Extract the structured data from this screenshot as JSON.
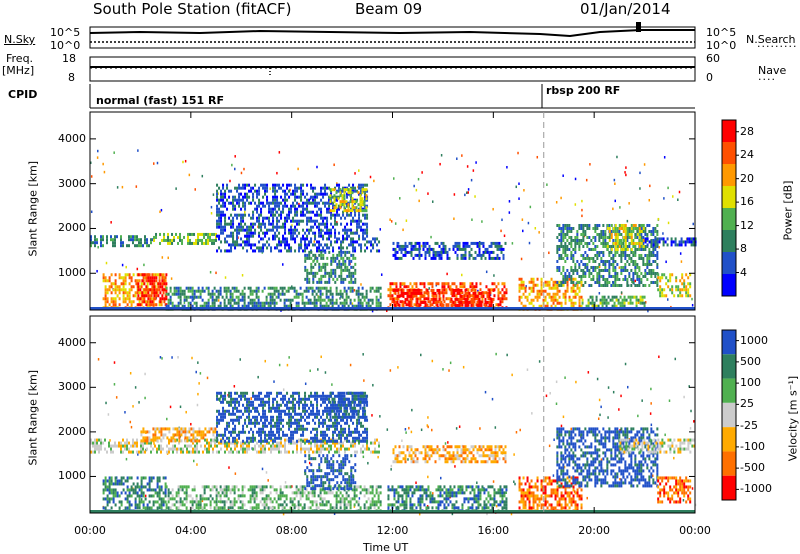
{
  "header": {
    "station": "South Pole Station (fitACF)",
    "beam": "Beam 09",
    "date": "01/Jan/2014"
  },
  "top_panels": {
    "nsky_label": "N.Sky",
    "nsearch_label": "N.Search",
    "nsky_ticks": [
      "10^5",
      "10^0"
    ],
    "freq_label": "Freq.",
    "freq_unit": "[MHz]",
    "freq_ticks": [
      "18",
      "8"
    ],
    "nave_label": "Nave",
    "nave_ticks": [
      "60",
      "0"
    ],
    "cpid_label": "CPID",
    "cpid_segments": [
      {
        "name": "normal (fast) 151 RF",
        "start_hour": 0
      },
      {
        "name": "rbsp 200 RF",
        "start_hour": 18
      }
    ]
  },
  "colors": {
    "power_scale": [
      "#0000ff",
      "#2050c8",
      "#2e7f5e",
      "#50b050",
      "#e0e000",
      "#ff9900",
      "#ff5000",
      "#ff0000"
    ],
    "velocity_scale": [
      "#2050c8",
      "#2e7f5e",
      "#50b050",
      "#cccccc",
      "#ffaa00",
      "#ff7000",
      "#ff0000"
    ]
  },
  "chart_data": [
    {
      "type": "heatmap",
      "panel": "power",
      "xlabel": "Time UT",
      "ylabel": "Slant Range [km]",
      "x_ticks": [
        "00:00",
        "04:00",
        "08:00",
        "12:00",
        "16:00",
        "20:00",
        "00:00"
      ],
      "xlim_hours": [
        0,
        24
      ],
      "y_ticks": [
        "1000",
        "2000",
        "3000",
        "4000"
      ],
      "ylim": [
        180,
        4600
      ],
      "colorbar_label": "Power [dB]",
      "colorbar_ticks": [
        "4",
        "8",
        "12",
        "16",
        "20",
        "24",
        "28"
      ],
      "colorbar_range": [
        0,
        30
      ],
      "regions": [
        {
          "t0": 0.0,
          "t1": 2.5,
          "r0": 1600,
          "r1": 1850,
          "level": 2
        },
        {
          "t0": 2.5,
          "t1": 5.0,
          "r0": 1650,
          "r1": 1900,
          "level": 3
        },
        {
          "t0": 5.0,
          "t1": 11.5,
          "r0": 1500,
          "r1": 1800,
          "level": 1
        },
        {
          "t0": 0.5,
          "t1": 3.0,
          "r0": 250,
          "r1": 1000,
          "level": 5
        },
        {
          "t0": 1.8,
          "t1": 3.0,
          "r0": 300,
          "r1": 1000,
          "level": 7
        },
        {
          "t0": 3.0,
          "t1": 11.5,
          "r0": 200,
          "r1": 700,
          "level": 2
        },
        {
          "t0": 5.0,
          "t1": 11.0,
          "r0": 1800,
          "r1": 3000,
          "level": 1
        },
        {
          "t0": 9.5,
          "t1": 11.0,
          "r0": 2400,
          "r1": 2900,
          "level": 4
        },
        {
          "t0": 8.5,
          "t1": 10.5,
          "r0": 800,
          "r1": 1500,
          "level": 2
        },
        {
          "t0": 11.8,
          "t1": 16.5,
          "r0": 200,
          "r1": 800,
          "level": 6
        },
        {
          "t0": 12.0,
          "t1": 14.0,
          "r0": 200,
          "r1": 650,
          "level": 7
        },
        {
          "t0": 14.3,
          "t1": 16.0,
          "r0": 200,
          "r1": 650,
          "level": 7
        },
        {
          "t0": 12.0,
          "t1": 16.5,
          "r0": 1300,
          "r1": 1700,
          "level": 1
        },
        {
          "t0": 17.0,
          "t1": 19.5,
          "r0": 200,
          "r1": 900,
          "level": 5
        },
        {
          "t0": 18.5,
          "t1": 22.5,
          "r0": 700,
          "r1": 2100,
          "level": 2
        },
        {
          "t0": 20.5,
          "t1": 22.0,
          "r0": 1500,
          "r1": 2100,
          "level": 4
        },
        {
          "t0": 22.0,
          "t1": 24.0,
          "r0": 1600,
          "r1": 1800,
          "level": 1
        },
        {
          "t0": 19.5,
          "t1": 22.0,
          "r0": 250,
          "r1": 500,
          "level": 3
        },
        {
          "t0": 22.5,
          "t1": 23.8,
          "r0": 500,
          "r1": 1000,
          "level": 4
        }
      ]
    },
    {
      "type": "heatmap",
      "panel": "velocity",
      "xlabel": "Time UT",
      "ylabel": "Slant Range [km]",
      "x_ticks": [
        "00:00",
        "04:00",
        "08:00",
        "12:00",
        "16:00",
        "20:00",
        "00:00"
      ],
      "xlim_hours": [
        0,
        24
      ],
      "y_ticks": [
        "1000",
        "2000",
        "3000",
        "4000"
      ],
      "ylim": [
        180,
        4600
      ],
      "colorbar_label": "Velocity [m s⁻¹]",
      "colorbar_ticks": [
        "1000",
        "500",
        "100",
        "25",
        "-25",
        "-100",
        "-500",
        "-1000"
      ],
      "regions": [
        {
          "t0": 0.0,
          "t1": 11.5,
          "r0": 1550,
          "r1": 1850,
          "level": 3
        },
        {
          "t0": 2.0,
          "t1": 5.0,
          "r0": 1800,
          "r1": 2100,
          "level": 4
        },
        {
          "t0": 0.5,
          "t1": 3.0,
          "r0": 250,
          "r1": 1000,
          "level": 1
        },
        {
          "t0": 3.0,
          "t1": 11.5,
          "r0": 200,
          "r1": 800,
          "level": 2
        },
        {
          "t0": 5.0,
          "t1": 11.0,
          "r0": 1800,
          "r1": 2900,
          "level": 0
        },
        {
          "t0": 9.5,
          "t1": 11.0,
          "r0": 2300,
          "r1": 2900,
          "level": 0
        },
        {
          "t0": 8.5,
          "t1": 10.5,
          "r0": 700,
          "r1": 1500,
          "level": 0
        },
        {
          "t0": 11.8,
          "t1": 16.5,
          "r0": 200,
          "r1": 800,
          "level": 1
        },
        {
          "t0": 12.0,
          "t1": 16.5,
          "r0": 1300,
          "r1": 1700,
          "level": 4
        },
        {
          "t0": 17.0,
          "t1": 19.5,
          "r0": 200,
          "r1": 1000,
          "level": 5
        },
        {
          "t0": 18.5,
          "t1": 22.5,
          "r0": 800,
          "r1": 2100,
          "level": 0
        },
        {
          "t0": 21.0,
          "t1": 24.0,
          "r0": 1550,
          "r1": 1850,
          "level": 3
        },
        {
          "t0": 22.5,
          "t1": 23.8,
          "r0": 400,
          "r1": 1000,
          "level": 5
        }
      ]
    }
  ]
}
